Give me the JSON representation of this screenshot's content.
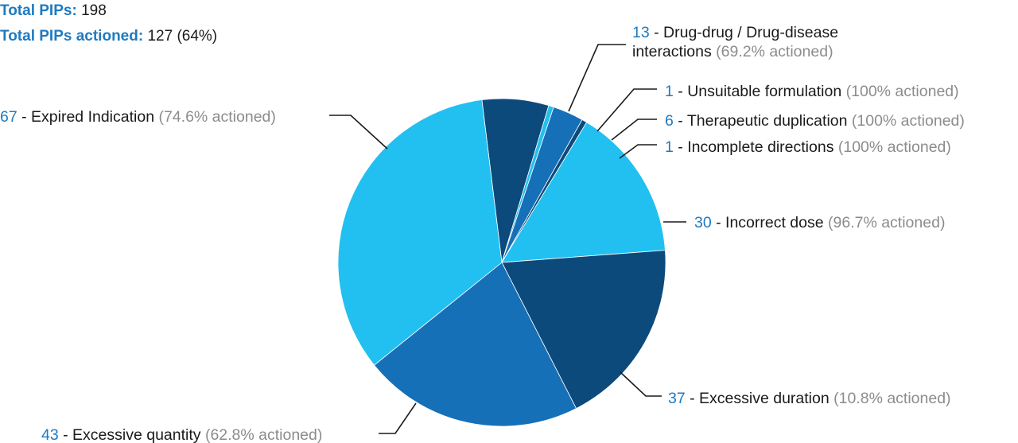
{
  "summary": {
    "total_label": "Total PIPs:",
    "total_value": "198",
    "actioned_label": "Total PIPs actioned:",
    "actioned_value": "127 (64%)"
  },
  "chart_data": {
    "type": "pie",
    "title": "",
    "start_angle_deg": -7,
    "direction": "clockwise",
    "slices": [
      {
        "category": "Drug-drug / Drug-disease interactions",
        "value": 13,
        "text_lines": [
          "Drug-drug / Drug-disease",
          "interactions"
        ],
        "actioned": "(69.2% actioned)",
        "color": "#0d4a7c"
      },
      {
        "category": "Unsuitable formulation",
        "value": 1,
        "text_lines": [
          "Unsuitable formulation"
        ],
        "actioned": "(100% actioned)",
        "color": "#22c0f0"
      },
      {
        "category": "Therapeutic duplication",
        "value": 6,
        "text_lines": [
          "Therapeutic duplication"
        ],
        "actioned": "(100% actioned)",
        "color": "#1670b8"
      },
      {
        "category": "Incomplete directions",
        "value": 1,
        "text_lines": [
          "Incomplete directions"
        ],
        "actioned": "(100% actioned)",
        "color": "#0d4a7c"
      },
      {
        "category": "Incorrect dose",
        "value": 30,
        "text_lines": [
          "Incorrect dose"
        ],
        "actioned": "(96.7% actioned)",
        "color": "#22c0f0"
      },
      {
        "category": "Excessive duration",
        "value": 37,
        "text_lines": [
          "Excessive duration"
        ],
        "actioned": "(10.8% actioned)",
        "color": "#0d4a7c"
      },
      {
        "category": "Excessive quantity",
        "value": 43,
        "text_lines": [
          "Excessive quantity"
        ],
        "actioned": "(62.8% actioned)",
        "color": "#1670b8"
      },
      {
        "category": "Expired Indication",
        "value": 67,
        "text_lines": [
          "Expired Indication"
        ],
        "actioned": "(74.6% actioned)",
        "color": "#22c0f0"
      }
    ]
  }
}
